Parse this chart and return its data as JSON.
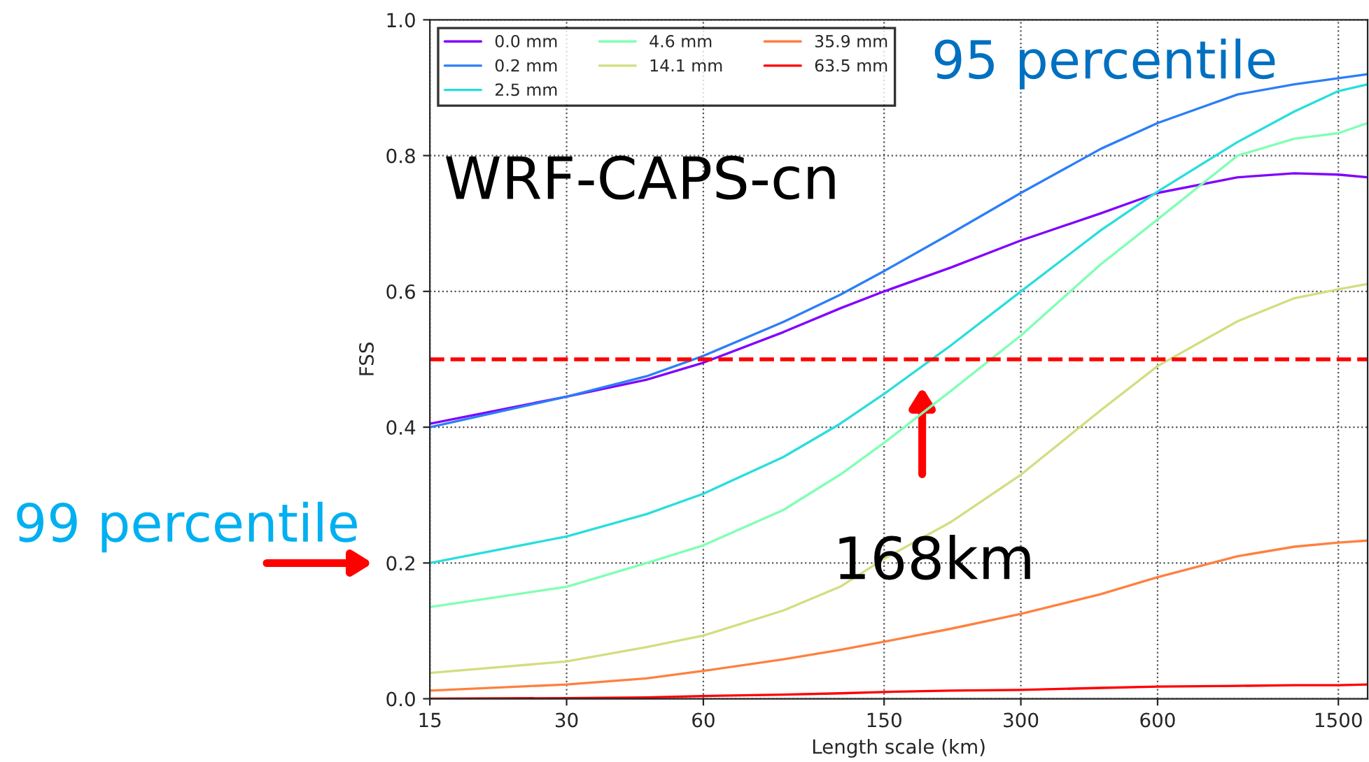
{
  "chart_data": {
    "type": "line",
    "x": [
      15,
      30,
      45,
      60,
      90,
      120,
      150,
      210,
      300,
      450,
      600,
      900,
      1200,
      1500,
      1740
    ],
    "series": [
      {
        "name": "0.0 mm",
        "color": "#8000ff",
        "values": [
          0.405,
          0.445,
          0.47,
          0.495,
          0.54,
          0.575,
          0.6,
          0.635,
          0.675,
          0.715,
          0.745,
          0.768,
          0.774,
          0.772,
          0.768
        ]
      },
      {
        "name": "0.2 mm",
        "color": "#2c7ef7",
        "values": [
          0.4,
          0.445,
          0.475,
          0.505,
          0.555,
          0.595,
          0.63,
          0.685,
          0.745,
          0.81,
          0.848,
          0.89,
          0.905,
          0.914,
          0.92
        ]
      },
      {
        "name": "2.5 mm",
        "color": "#2adddd",
        "values": [
          0.2,
          0.239,
          0.272,
          0.302,
          0.356,
          0.405,
          0.449,
          0.52,
          0.6,
          0.69,
          0.747,
          0.82,
          0.865,
          0.895,
          0.905
        ]
      },
      {
        "name": "4.6 mm",
        "color": "#80ffb4",
        "values": [
          0.135,
          0.165,
          0.2,
          0.226,
          0.278,
          0.33,
          0.377,
          0.453,
          0.535,
          0.64,
          0.706,
          0.8,
          0.825,
          0.833,
          0.848
        ]
      },
      {
        "name": "14.1 mm",
        "color": "#d4dd80",
        "values": [
          0.038,
          0.055,
          0.076,
          0.093,
          0.13,
          0.165,
          0.206,
          0.26,
          0.33,
          0.425,
          0.49,
          0.556,
          0.59,
          0.603,
          0.611
        ]
      },
      {
        "name": "35.9 mm",
        "color": "#ff8040",
        "values": [
          0.012,
          0.021,
          0.03,
          0.041,
          0.058,
          0.072,
          0.084,
          0.103,
          0.125,
          0.154,
          0.179,
          0.21,
          0.224,
          0.23,
          0.233
        ]
      },
      {
        "name": "63.5 mm",
        "color": "#ff0000",
        "values": [
          0.0,
          0.001,
          0.002,
          0.004,
          0.006,
          0.008,
          0.01,
          0.012,
          0.013,
          0.016,
          0.018,
          0.019,
          0.02,
          0.02,
          0.021
        ]
      }
    ],
    "xlabel": "Length scale (km)",
    "ylabel": "FSS",
    "log": "x",
    "xlim": [
      15,
      1740
    ],
    "xticks": [
      15,
      30,
      60,
      150,
      300,
      600,
      1500
    ],
    "ylim": [
      0,
      1
    ],
    "yticks": [
      {
        "value": 0,
        "label": "0.0"
      },
      {
        "value": 0.2,
        "label": "0.2"
      },
      {
        "value": 0.4,
        "label": "0.4"
      },
      {
        "value": 0.6,
        "label": "0.6"
      },
      {
        "value": 0.8,
        "label": "0.8"
      },
      {
        "value": 1,
        "label": "1.0"
      }
    ],
    "ref_lines": [
      {
        "axis": "y",
        "value": 0.5,
        "color": "#ff0000",
        "line_style": "dashed"
      }
    ],
    "annotations": [
      "WRF-CAPS-cn",
      "95 percentile",
      "99 percentile",
      "168km"
    ],
    "grid": true,
    "legend": "top left",
    "marker": "none",
    "line_style": "solid"
  }
}
